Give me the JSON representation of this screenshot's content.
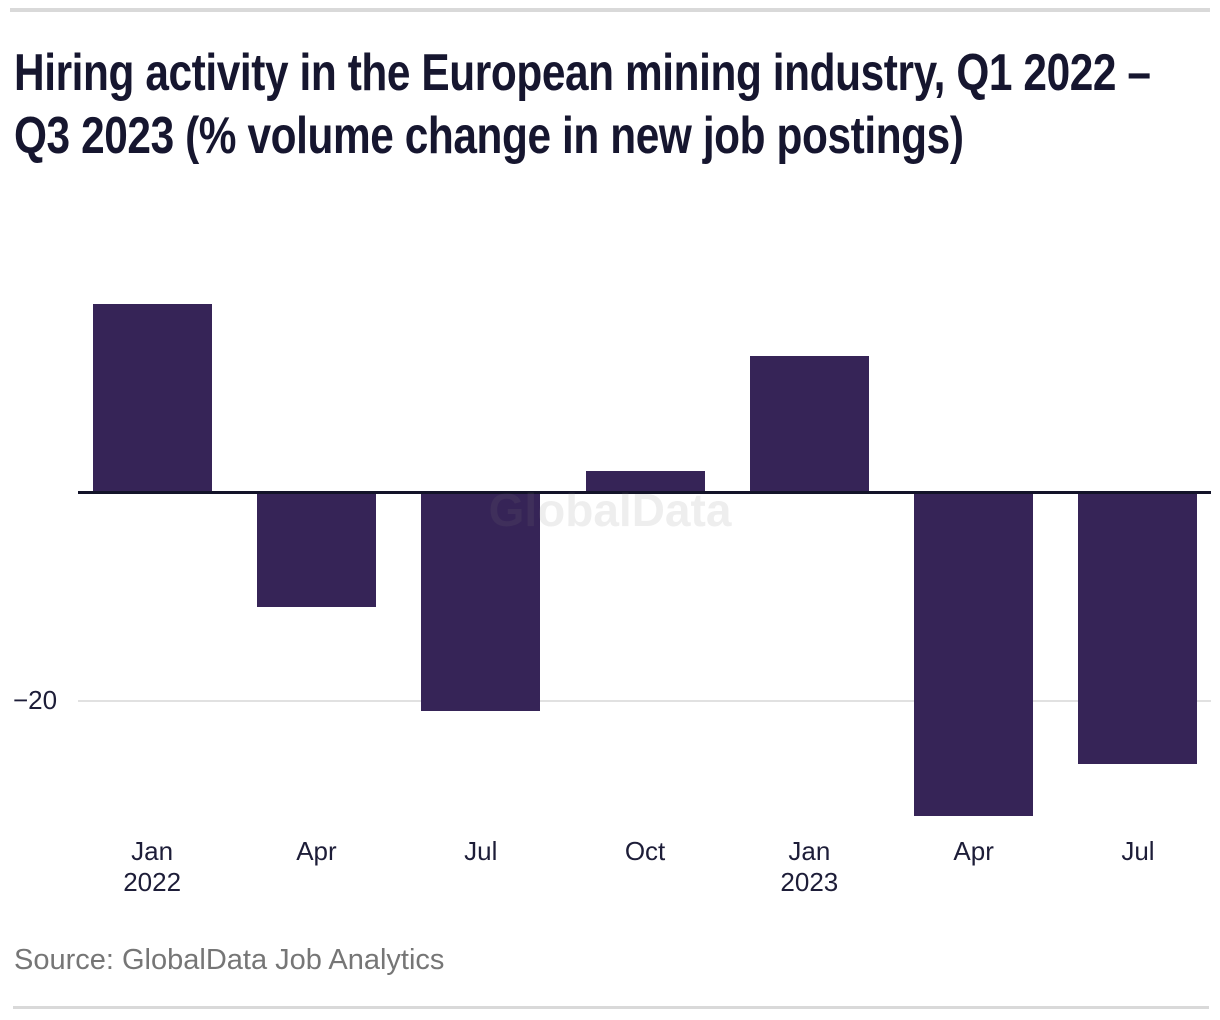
{
  "page": {
    "title": "Hiring activity in the European mining industry, Q1 2022 – Q3 2023 (% volume change in new job postings)",
    "source": "Source: GlobalData Job Analytics",
    "watermark": "GlobalData"
  },
  "colors": {
    "bar": "#362457",
    "title_text": "#16162f",
    "axis_text": "#1d1d38",
    "source_text": "#767676",
    "zero_line": "#131329",
    "gridline": "#e1e1e1",
    "border": "#d9d9d9",
    "background": "#ffffff"
  },
  "chart_data": {
    "type": "bar",
    "title": "Hiring activity in the European mining industry, Q1 2022 – Q3 2023 (% volume change in new job postings)",
    "categories": [
      "Jan 2022",
      "Apr 2022",
      "Jul 2022",
      "Oct 2022",
      "Jan 2023",
      "Apr 2023",
      "Jul 2023"
    ],
    "x_tick_lines": [
      [
        "Jan",
        "2022"
      ],
      [
        "Apr"
      ],
      [
        "Jul"
      ],
      [
        "Oct"
      ],
      [
        "Jan",
        "2023"
      ],
      [
        "Apr"
      ],
      [
        "Jul"
      ]
    ],
    "values": [
      18,
      -11,
      -21,
      2,
      13,
      -31,
      -26
    ],
    "series_name": "% volume change in new job postings",
    "xlabel": "",
    "ylabel": "",
    "y_ticks": [
      {
        "value": -20,
        "label": "−20"
      }
    ],
    "ylim": [
      -33,
      19
    ],
    "grid": "horizontal gridline at -20 only, zero baseline emphasized",
    "legend": "none",
    "bar_color": "#362457",
    "watermark": "GlobalData",
    "source": "Source: GlobalData Job Analytics"
  }
}
